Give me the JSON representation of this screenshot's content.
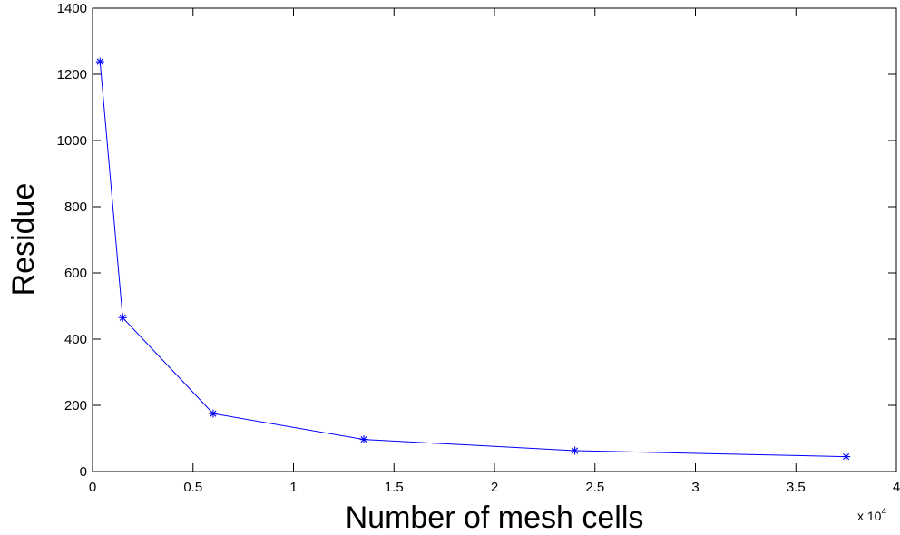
{
  "chart_data": {
    "type": "line",
    "title": "",
    "xlabel": "Number of mesh cells",
    "ylabel": "Residue",
    "x_multiplier": {
      "base": "x 10",
      "exponent": "4"
    },
    "xlim": [
      0,
      40000
    ],
    "ylim": [
      0,
      1400
    ],
    "x_ticks": [
      0,
      5000,
      10000,
      15000,
      20000,
      25000,
      30000,
      35000,
      40000
    ],
    "x_tick_labels": [
      "0",
      "0.5",
      "1",
      "1.5",
      "2",
      "2.5",
      "3",
      "3.5",
      "4"
    ],
    "y_ticks": [
      0,
      200,
      400,
      600,
      800,
      1000,
      1200,
      1400
    ],
    "y_tick_labels": [
      "0",
      "200",
      "400",
      "600",
      "800",
      "1000",
      "1200",
      "1400"
    ],
    "grid": false,
    "legend": "none",
    "series": [
      {
        "color": "#0000ff",
        "marker": "asterisk",
        "x": [
          375,
          1500,
          6000,
          13500,
          24000,
          37500
        ],
        "y": [
          1238,
          465,
          175,
          97,
          63,
          45
        ]
      }
    ]
  }
}
